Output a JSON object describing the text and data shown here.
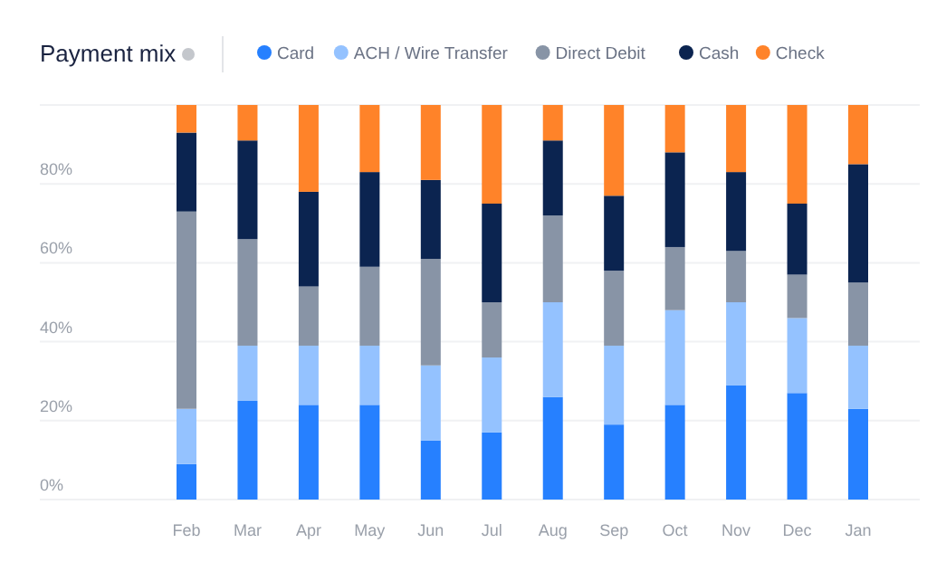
{
  "chart_data": {
    "type": "bar",
    "title": "Payment mix",
    "stacked": true,
    "categories": [
      "Feb",
      "Mar",
      "Apr",
      "May",
      "Jun",
      "Jul",
      "Aug",
      "Sep",
      "Oct",
      "Nov",
      "Dec",
      "Jan"
    ],
    "series": [
      {
        "name": "Card",
        "color": "#2680ff",
        "values": [
          9,
          25,
          24,
          24,
          15,
          17,
          26,
          19,
          24,
          29,
          27,
          23
        ]
      },
      {
        "name": "ACH / Wire Transfer",
        "color": "#94c2ff",
        "values": [
          14,
          14,
          15,
          15,
          19,
          19,
          24,
          20,
          24,
          21,
          19,
          16
        ]
      },
      {
        "name": "Direct Debit",
        "color": "#8894a6",
        "values": [
          50,
          27,
          15,
          20,
          27,
          14,
          22,
          19,
          16,
          13,
          11,
          16
        ]
      },
      {
        "name": "Cash",
        "color": "#0b2450",
        "values": [
          20,
          25,
          24,
          24,
          20,
          25,
          19,
          19,
          24,
          20,
          18,
          30
        ]
      },
      {
        "name": "Check",
        "color": "#ff8329",
        "values": [
          7,
          9,
          22,
          17,
          19,
          25,
          9,
          23,
          12,
          17,
          25,
          15
        ]
      }
    ],
    "ylim": [
      0,
      100
    ],
    "yticks": [
      {
        "value": 0,
        "label": "0%"
      },
      {
        "value": 20,
        "label": "20%"
      },
      {
        "value": 40,
        "label": "40%"
      },
      {
        "value": 60,
        "label": "60%"
      },
      {
        "value": 80,
        "label": "80%"
      },
      {
        "value": 100,
        "label": null
      }
    ],
    "grid": "y",
    "legend": "top"
  }
}
